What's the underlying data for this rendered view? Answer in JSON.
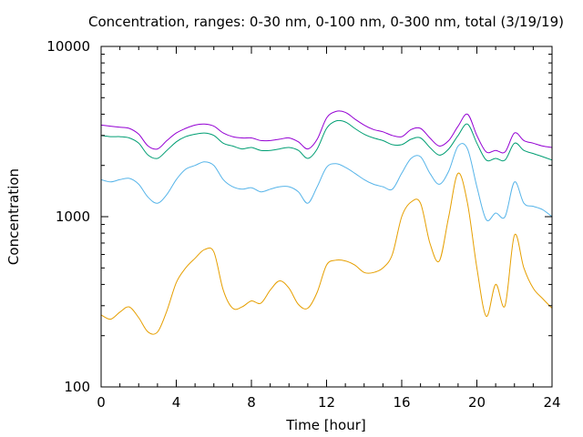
{
  "chart_data": {
    "type": "line",
    "title": "Concentration, ranges: 0-30 nm, 0-100 nm, 0-300 nm, total (3/19/19)",
    "xlabel": "Time [hour]",
    "ylabel": "Concentration",
    "xlim": [
      0,
      24
    ],
    "ylim": [
      100,
      10000
    ],
    "yscale": "log",
    "grid": false,
    "legend": "none",
    "x_ticks": [
      0,
      4,
      8,
      12,
      16,
      20,
      24
    ],
    "x_tick_labels": [
      "0",
      "4",
      "8",
      "12",
      "16",
      "20",
      "24"
    ],
    "y_ticks": [
      100,
      1000,
      10000
    ],
    "y_tick_labels": [
      "100",
      "1000",
      "10000"
    ],
    "series": [
      {
        "color": "#E69F00",
        "x": [
          0,
          0.5,
          1,
          1.5,
          2,
          2.5,
          3,
          3.5,
          4,
          4.5,
          5,
          5.5,
          6,
          6.5,
          7,
          7.5,
          8,
          8.5,
          9,
          9.5,
          10,
          10.5,
          11,
          11.5,
          12,
          12.5,
          13,
          13.5,
          14,
          14.5,
          15,
          15.5,
          16,
          16.5,
          17,
          17.5,
          18,
          18.5,
          19,
          19.5,
          20,
          20.5,
          21,
          21.5,
          22,
          22.5,
          23,
          23.5,
          24
        ],
        "values": [
          265,
          250,
          275,
          295,
          255,
          210,
          210,
          280,
          410,
          500,
          570,
          640,
          620,
          370,
          290,
          295,
          320,
          310,
          370,
          420,
          380,
          305,
          290,
          360,
          520,
          555,
          550,
          520,
          470,
          470,
          500,
          600,
          1000,
          1220,
          1200,
          700,
          550,
          1000,
          1800,
          1200,
          500,
          260,
          400,
          300,
          780,
          500,
          380,
          330,
          290
        ]
      },
      {
        "color": "#56B4E9",
        "x": [
          0,
          0.5,
          1,
          1.5,
          2,
          2.5,
          3,
          3.5,
          4,
          4.5,
          5,
          5.5,
          6,
          6.5,
          7,
          7.5,
          8,
          8.5,
          9,
          9.5,
          10,
          10.5,
          11,
          11.5,
          12,
          12.5,
          13,
          13.5,
          14,
          14.5,
          15,
          15.5,
          16,
          16.5,
          17,
          17.5,
          18,
          18.5,
          19,
          19.5,
          20,
          20.5,
          21,
          21.5,
          22,
          22.5,
          23,
          23.5,
          24
        ],
        "values": [
          1650,
          1600,
          1650,
          1680,
          1550,
          1300,
          1200,
          1350,
          1650,
          1900,
          2000,
          2100,
          2000,
          1650,
          1500,
          1450,
          1480,
          1400,
          1450,
          1500,
          1500,
          1400,
          1200,
          1500,
          1950,
          2050,
          1950,
          1800,
          1650,
          1550,
          1500,
          1450,
          1800,
          2200,
          2250,
          1800,
          1550,
          1850,
          2600,
          2500,
          1500,
          960,
          1050,
          1000,
          1600,
          1200,
          1150,
          1100,
          1000
        ]
      },
      {
        "color": "#009E73",
        "x": [
          0,
          0.5,
          1,
          1.5,
          2,
          2.5,
          3,
          3.5,
          4,
          4.5,
          5,
          5.5,
          6,
          6.5,
          7,
          7.5,
          8,
          8.5,
          9,
          9.5,
          10,
          10.5,
          11,
          11.5,
          12,
          12.5,
          13,
          13.5,
          14,
          14.5,
          15,
          15.5,
          16,
          16.5,
          17,
          17.5,
          18,
          18.5,
          19,
          19.5,
          20,
          20.5,
          21,
          21.5,
          22,
          22.5,
          23,
          23.5,
          24
        ],
        "values": [
          3000,
          2950,
          2950,
          2900,
          2700,
          2300,
          2200,
          2450,
          2750,
          2950,
          3050,
          3100,
          3000,
          2700,
          2600,
          2500,
          2550,
          2450,
          2450,
          2500,
          2550,
          2450,
          2200,
          2500,
          3300,
          3650,
          3600,
          3300,
          3050,
          2900,
          2800,
          2650,
          2650,
          2850,
          2900,
          2550,
          2300,
          2500,
          3000,
          3500,
          2700,
          2150,
          2200,
          2150,
          2700,
          2450,
          2350,
          2250,
          2150
        ]
      },
      {
        "color": "#9400D3",
        "x": [
          0,
          0.5,
          1,
          1.5,
          2,
          2.5,
          3,
          3.5,
          4,
          4.5,
          5,
          5.5,
          6,
          6.5,
          7,
          7.5,
          8,
          8.5,
          9,
          9.5,
          10,
          10.5,
          11,
          11.5,
          12,
          12.5,
          13,
          13.5,
          14,
          14.5,
          15,
          15.5,
          16,
          16.5,
          17,
          17.5,
          18,
          18.5,
          19,
          19.5,
          20,
          20.5,
          21,
          21.5,
          22,
          22.5,
          23,
          23.5,
          24
        ],
        "values": [
          3450,
          3400,
          3350,
          3300,
          3050,
          2600,
          2500,
          2800,
          3100,
          3300,
          3450,
          3500,
          3400,
          3100,
          2950,
          2900,
          2900,
          2800,
          2800,
          2850,
          2900,
          2750,
          2500,
          2850,
          3800,
          4150,
          4100,
          3750,
          3450,
          3250,
          3150,
          3000,
          2950,
          3250,
          3300,
          2900,
          2600,
          2800,
          3400,
          4000,
          3000,
          2400,
          2450,
          2400,
          3100,
          2800,
          2700,
          2600,
          2550
        ]
      }
    ]
  }
}
